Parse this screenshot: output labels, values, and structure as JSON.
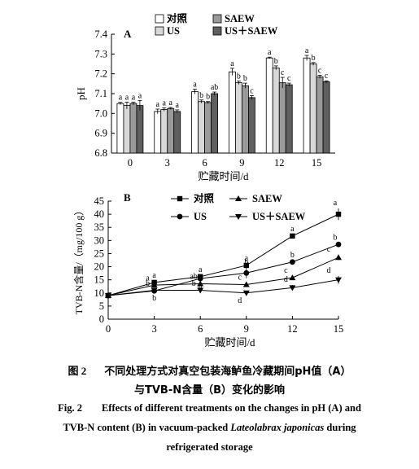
{
  "chart_data": [
    {
      "panel_label": "A",
      "type": "bar",
      "xlabel": "贮藏时间/d",
      "ylabel": "pH",
      "categories": [
        "0",
        "3",
        "6",
        "9",
        "12",
        "15"
      ],
      "ylim": [
        6.8,
        7.4
      ],
      "yticks": [
        "6.8",
        "6.9",
        "7.0",
        "7.1",
        "7.2",
        "7.3",
        "7.4"
      ],
      "legend_position": "top",
      "series": [
        {
          "name": "对照",
          "color": "#ffffff",
          "values": [
            7.05,
            7.01,
            7.11,
            7.21,
            7.28,
            7.28
          ],
          "errors": [
            0.006,
            0.012,
            0.012,
            0.018,
            0.004,
            0.013
          ],
          "letters": [
            "a",
            "a",
            "a",
            "a",
            "a",
            "a"
          ]
        },
        {
          "name": "US",
          "color": "#d8d8d8",
          "values": [
            7.04,
            7.02,
            7.06,
            7.155,
            7.23,
            7.25
          ],
          "errors": [
            0.017,
            0.008,
            0.008,
            0.008,
            0.01,
            0.007
          ],
          "letters": [
            "a",
            "a",
            "b",
            "b",
            "b",
            "b"
          ]
        },
        {
          "name": "SAEW",
          "color": "#9a9a9a",
          "values": [
            7.05,
            7.025,
            7.055,
            7.14,
            7.155,
            7.185
          ],
          "errors": [
            0.007,
            0.005,
            0.005,
            0.013,
            0.027,
            0.008
          ],
          "letters": [
            "a",
            "a",
            "b",
            "b",
            "c",
            "c"
          ]
        },
        {
          "name": "US＋SAEW",
          "color": "#5f5f5f",
          "values": [
            7.04,
            7.01,
            7.1,
            7.08,
            7.145,
            7.16
          ],
          "errors": [
            0.025,
            0.008,
            0.008,
            0.01,
            0.008,
            0.005
          ],
          "letters": [
            "a",
            "a",
            "ab",
            "c",
            "c",
            "c"
          ]
        }
      ]
    },
    {
      "panel_label": "B",
      "type": "line",
      "xlabel": "贮藏时间/d",
      "ylabel": "TVB-N含量/（mg/100 g）",
      "x": [
        0,
        3,
        6,
        9,
        12,
        15
      ],
      "xlim": [
        0,
        15
      ],
      "ylim": [
        0,
        45
      ],
      "xticks": [
        "0",
        "3",
        "6",
        "9",
        "12",
        "15"
      ],
      "yticks": [
        "0",
        "5",
        "10",
        "15",
        "20",
        "25",
        "30",
        "35",
        "40",
        "45"
      ],
      "legend_position": "top",
      "series": [
        {
          "name": "对照",
          "marker": "square",
          "values": [
            9.0,
            14.0,
            16.2,
            20.5,
            31.7,
            40.0
          ],
          "errors": [
            0.5,
            0.6,
            0.5,
            0.6,
            0.5,
            2.2
          ],
          "letters": [
            "",
            "a",
            "a",
            "a",
            "a",
            "a"
          ]
        },
        {
          "name": "US",
          "marker": "circle",
          "values": [
            9.0,
            10.8,
            15.5,
            17.6,
            21.8,
            28.5
          ],
          "errors": [
            0.5,
            0.6,
            0.6,
            2.0,
            0.5,
            0.5
          ],
          "letters": [
            "",
            "b",
            "a",
            "b",
            "b",
            "b"
          ]
        },
        {
          "name": "SAEW",
          "marker": "triangle",
          "values": [
            9.0,
            13.0,
            13.5,
            13.2,
            15.8,
            23.5
          ],
          "errors": [
            0.5,
            0.5,
            0.6,
            0.6,
            0.6,
            1.0
          ],
          "letters": [
            "",
            "a",
            "ab",
            "c",
            "c",
            "c"
          ]
        },
        {
          "name": "US＋SAEW",
          "marker": "inverted-triangle",
          "values": [
            9.0,
            11.0,
            11.0,
            10.0,
            12.0,
            15.0
          ],
          "errors": [
            0.5,
            0.5,
            0.5,
            0.5,
            1.0,
            1.5
          ],
          "letters": [
            "",
            "b",
            "b",
            "d",
            "d",
            "d"
          ]
        }
      ]
    }
  ],
  "caption": {
    "cn_number": "图 2",
    "cn_line1": "不同处理方式对真空包装海鲈鱼冷藏期间pH值（A）",
    "cn_line2": "与TVB-N含量（B）变化的影响",
    "en_number": "Fig. 2",
    "en_line1": "Effects of different treatments on the changes in pH (A) and",
    "en_line2_pre": "TVB-N content (B) in vacuum-packed ",
    "en_line2_species": "Lateolabrax japonicas",
    "en_line2_post": " during",
    "en_line3": "refrigerated storage"
  }
}
